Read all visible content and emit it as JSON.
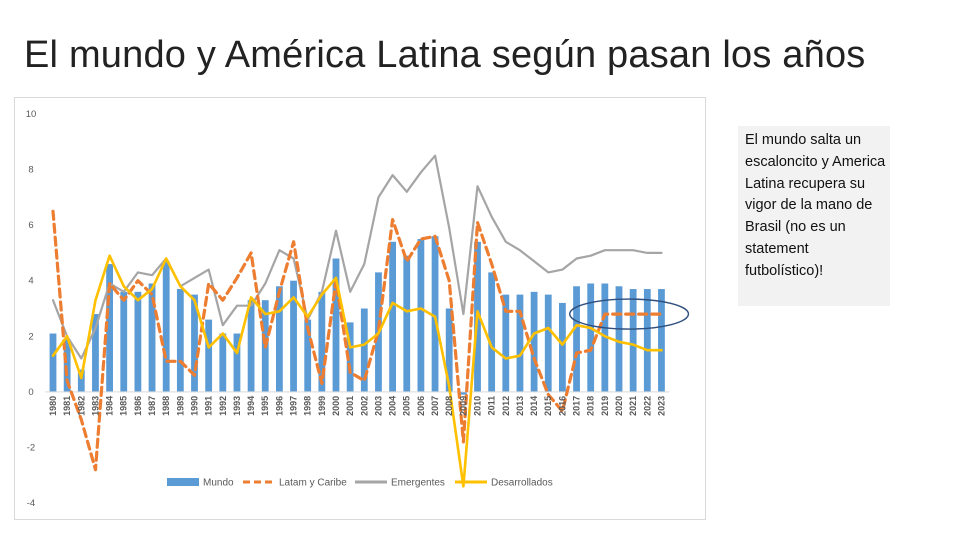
{
  "slide": {
    "title": "El mundo y América Latina según pasan los años",
    "note": "El mundo salta un escaloncito y America Latina recupera su vigor de la mano de Brasil (no es un statement futbolístico)!"
  },
  "colors": {
    "mundo": "#5b9bd5",
    "latam": "#ed7d31",
    "emergentes": "#a5a5a5",
    "desarrollados": "#ffc000",
    "highlight": "#2f4f7f",
    "axis_text": "#595959"
  },
  "chart_data": {
    "type": "bar+line",
    "title": "",
    "xlabel": "",
    "ylabel": "",
    "ylim": [
      -4,
      10
    ],
    "yticks": [
      -4,
      -2,
      0,
      2,
      4,
      6,
      8,
      10
    ],
    "grid": false,
    "legend_position": "bottom",
    "categories": [
      "1980",
      "1981",
      "1982",
      "1983",
      "1984",
      "1985",
      "1986",
      "1987",
      "1988",
      "1989",
      "1990",
      "1991",
      "1992",
      "1993",
      "1994",
      "1995",
      "1996",
      "1997",
      "1998",
      "1999",
      "2000",
      "2001",
      "2002",
      "2003",
      "2004",
      "2005",
      "2006",
      "2007",
      "2008",
      "2009",
      "2010",
      "2011",
      "2012",
      "2013",
      "2014",
      "2015",
      "2016",
      "2017",
      "2018",
      "2019",
      "2020",
      "2021",
      "2022",
      "2023"
    ],
    "series": [
      {
        "name": "Mundo",
        "kind": "bar",
        "values": [
          2.1,
          1.9,
          0.8,
          2.8,
          4.6,
          3.6,
          3.6,
          3.9,
          4.7,
          3.7,
          3.5,
          2.6,
          2.1,
          2.1,
          3.3,
          3.3,
          3.8,
          4.0,
          2.6,
          3.6,
          4.8,
          2.5,
          3.0,
          4.3,
          5.4,
          4.9,
          5.5,
          5.6,
          3.0,
          -0.1,
          5.4,
          4.3,
          3.5,
          3.5,
          3.6,
          3.5,
          3.2,
          3.8,
          3.9,
          3.9,
          3.8,
          3.7,
          3.7,
          3.7
        ]
      },
      {
        "name": "Latam y Caribe",
        "kind": "dashed-line",
        "values": [
          6.5,
          0.4,
          -1.0,
          -2.8,
          3.9,
          3.3,
          4.0,
          3.5,
          1.1,
          1.1,
          0.6,
          3.9,
          3.3,
          4.1,
          5.0,
          1.6,
          3.6,
          5.4,
          2.3,
          0.3,
          4.0,
          0.7,
          0.4,
          2.2,
          6.2,
          4.7,
          5.5,
          5.6,
          4.0,
          -1.8,
          6.1,
          4.6,
          2.9,
          2.9,
          1.2,
          -0.1,
          -0.7,
          1.4,
          1.5,
          2.8,
          2.8,
          2.8,
          2.8,
          2.8
        ]
      },
      {
        "name": "Emergentes",
        "kind": "line",
        "values": [
          3.3,
          2.0,
          1.2,
          2.3,
          3.9,
          3.6,
          4.3,
          4.2,
          4.8,
          3.8,
          4.1,
          4.4,
          2.4,
          3.1,
          3.1,
          3.9,
          5.1,
          4.8,
          2.6,
          3.6,
          5.8,
          3.6,
          4.6,
          7.0,
          7.8,
          7.2,
          7.9,
          8.5,
          5.9,
          2.8,
          7.4,
          6.3,
          5.4,
          5.1,
          4.7,
          4.3,
          4.4,
          4.8,
          4.9,
          5.1,
          5.1,
          5.1,
          5.0,
          5.0
        ]
      },
      {
        "name": "Desarrollados",
        "kind": "line",
        "values": [
          1.3,
          2.0,
          0.5,
          3.3,
          4.9,
          3.8,
          3.3,
          3.7,
          4.8,
          3.8,
          3.3,
          1.6,
          2.1,
          1.4,
          3.4,
          2.8,
          2.9,
          3.4,
          2.7,
          3.5,
          4.1,
          1.6,
          1.7,
          2.1,
          3.2,
          2.9,
          3.0,
          2.7,
          0.2,
          -3.4,
          2.9,
          1.6,
          1.2,
          1.3,
          2.1,
          2.3,
          1.7,
          2.4,
          2.3,
          2.0,
          1.8,
          1.7,
          1.5,
          1.5
        ]
      }
    ],
    "annotations": [
      {
        "type": "ellipse",
        "from": "2018",
        "to": "2023",
        "around_value": 2.8,
        "label": ""
      }
    ]
  }
}
